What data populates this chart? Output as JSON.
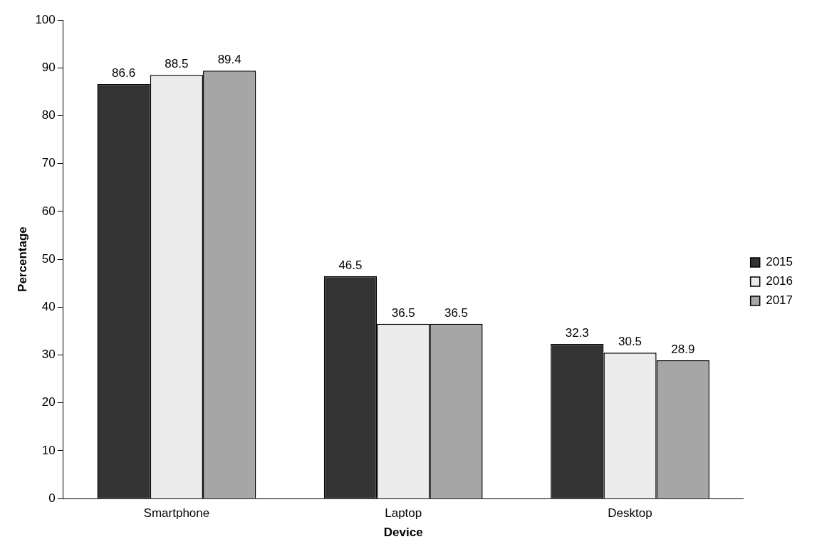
{
  "chart_data": {
    "type": "bar",
    "xlabel": "Device",
    "ylabel": "Percentage",
    "categories": [
      "Smartphone",
      "Laptop",
      "Desktop"
    ],
    "series": [
      {
        "name": "2015",
        "color": "#333333",
        "values": [
          86.6,
          46.5,
          32.3
        ]
      },
      {
        "name": "2016",
        "color": "#ececec",
        "values": [
          88.5,
          36.5,
          30.5
        ]
      },
      {
        "name": "2017",
        "color": "#a6a6a6",
        "values": [
          89.4,
          36.5,
          28.9
        ]
      }
    ],
    "ylim": [
      0,
      100
    ],
    "yticks": [
      0,
      10,
      20,
      30,
      40,
      50,
      60,
      70,
      80,
      90,
      100
    ],
    "grid": false,
    "legend": "right",
    "data_labels": true
  }
}
